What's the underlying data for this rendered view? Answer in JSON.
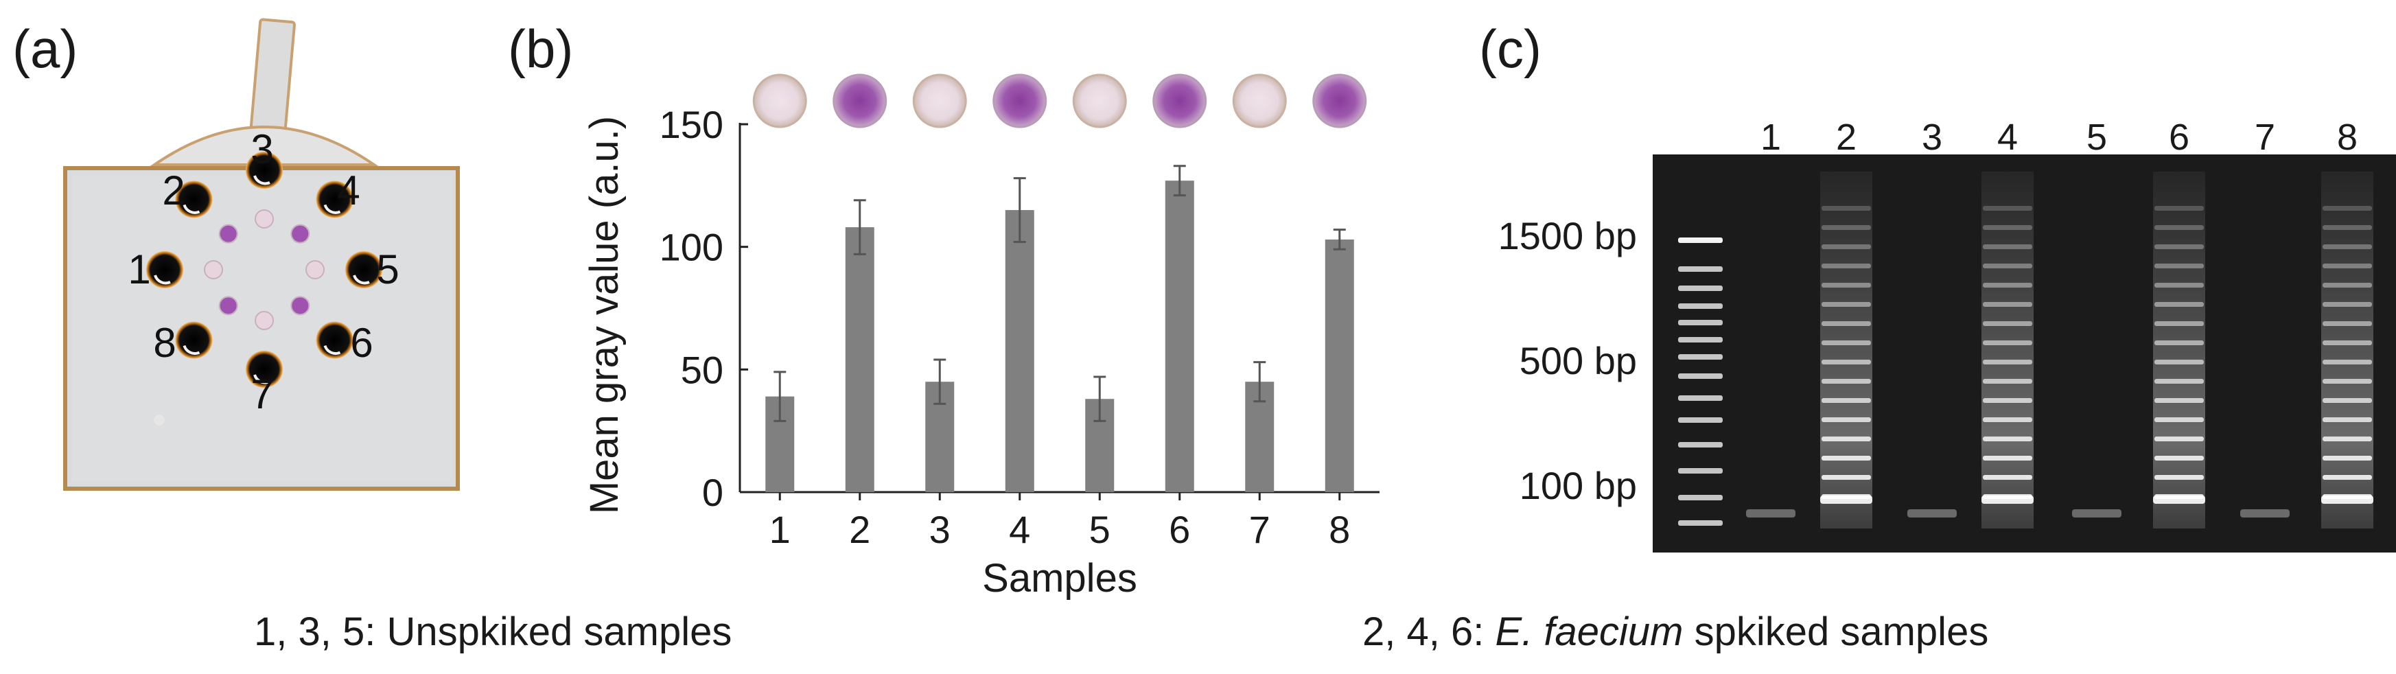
{
  "panels": {
    "a": {
      "label": "(a)",
      "well_numbers": [
        "1",
        "2",
        "3",
        "4",
        "5",
        "6",
        "7",
        "8"
      ]
    },
    "b": {
      "label": "(b)"
    },
    "c": {
      "label": "(c)",
      "lane_labels": [
        "1",
        "2",
        "3",
        "4",
        "5",
        "6",
        "7",
        "8"
      ],
      "ladder_labels": [
        "1500 bp",
        "500 bp",
        "100 bp"
      ]
    }
  },
  "captions": {
    "unspiked": "1, 3, 5: Unspkiked samples",
    "spiked_prefix": "2, 4, 6: ",
    "spiked_species": "E. faecium",
    "spiked_suffix": " spkiked samples"
  },
  "chart_data": {
    "type": "bar",
    "categories": [
      "1",
      "2",
      "3",
      "4",
      "5",
      "6",
      "7",
      "8"
    ],
    "values": [
      39,
      108,
      45,
      115,
      38,
      127,
      45,
      103
    ],
    "errors": [
      10,
      11,
      9,
      13,
      9,
      6,
      8,
      4
    ],
    "xlabel": "Samples",
    "ylabel": "Mean gray value (a.u.)",
    "ylim": [
      0,
      150
    ],
    "yticks": [
      0,
      50,
      100,
      150
    ],
    "bar_color": "#808080",
    "grid": false,
    "inset_images": [
      "pale",
      "purple",
      "pale",
      "purple",
      "pale",
      "purple",
      "pale",
      "purple"
    ]
  }
}
